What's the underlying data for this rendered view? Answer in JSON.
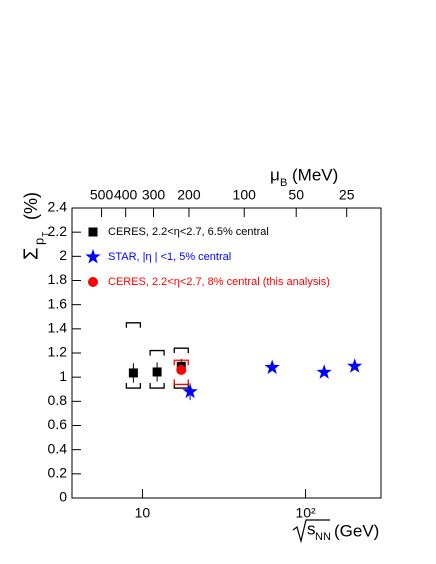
{
  "chart_data": {
    "type": "scatter",
    "x_label": {
      "radicand": "s",
      "sub": "NN",
      "unit": "(GeV)"
    },
    "y_label": {
      "symbol": "Σ",
      "sub": "p",
      "subsub": "T",
      "unit": "(%)"
    },
    "x2_label": {
      "symbol": "μ",
      "sub": "B",
      "unit": "(MeV)"
    },
    "log_x": true,
    "xlim": [
      3.7,
      290
    ],
    "xticks": [
      10,
      {
        "value": 100,
        "label": "10²"
      }
    ],
    "ylim": [
      0,
      2.4
    ],
    "yticks": [
      0,
      0.2,
      0.4,
      0.6,
      0.8,
      1,
      1.2,
      1.4,
      1.6,
      1.8,
      2,
      2.2,
      2.4
    ],
    "x2ticks": [
      500,
      400,
      300,
      200,
      100,
      50,
      25
    ],
    "series": [
      {
        "name": "CERES, 2.2<η<2.7, 6.5% central",
        "color": "#000000",
        "marker": "square",
        "x": [
          8.8,
          12.3,
          17.3
        ],
        "values": [
          1.035,
          1.043,
          1.09
        ],
        "errors": [
          0.08,
          0.08,
          0.06
        ],
        "sys_low": [
          0.91,
          0.91,
          0.91
        ],
        "sys_high": [
          1.45,
          1.22,
          1.24
        ]
      },
      {
        "name": "STAR, |η | <1, 5% central",
        "color": "#0000ff",
        "marker": "star",
        "x": [
          19.6,
          62.4,
          130,
          200
        ],
        "values": [
          0.88,
          1.08,
          1.04,
          1.09
        ],
        "errors": [
          0.07,
          0.02,
          0.02,
          0.02
        ]
      },
      {
        "name": "CERES, 2.2<η<2.7, 8% central (this analysis)",
        "color": "#ff0000",
        "marker": "circle",
        "x": [
          17.3
        ],
        "values": [
          1.06
        ],
        "errors": [
          0.03
        ],
        "sys_low": [
          0.94
        ],
        "sys_high": [
          1.14
        ]
      }
    ]
  }
}
